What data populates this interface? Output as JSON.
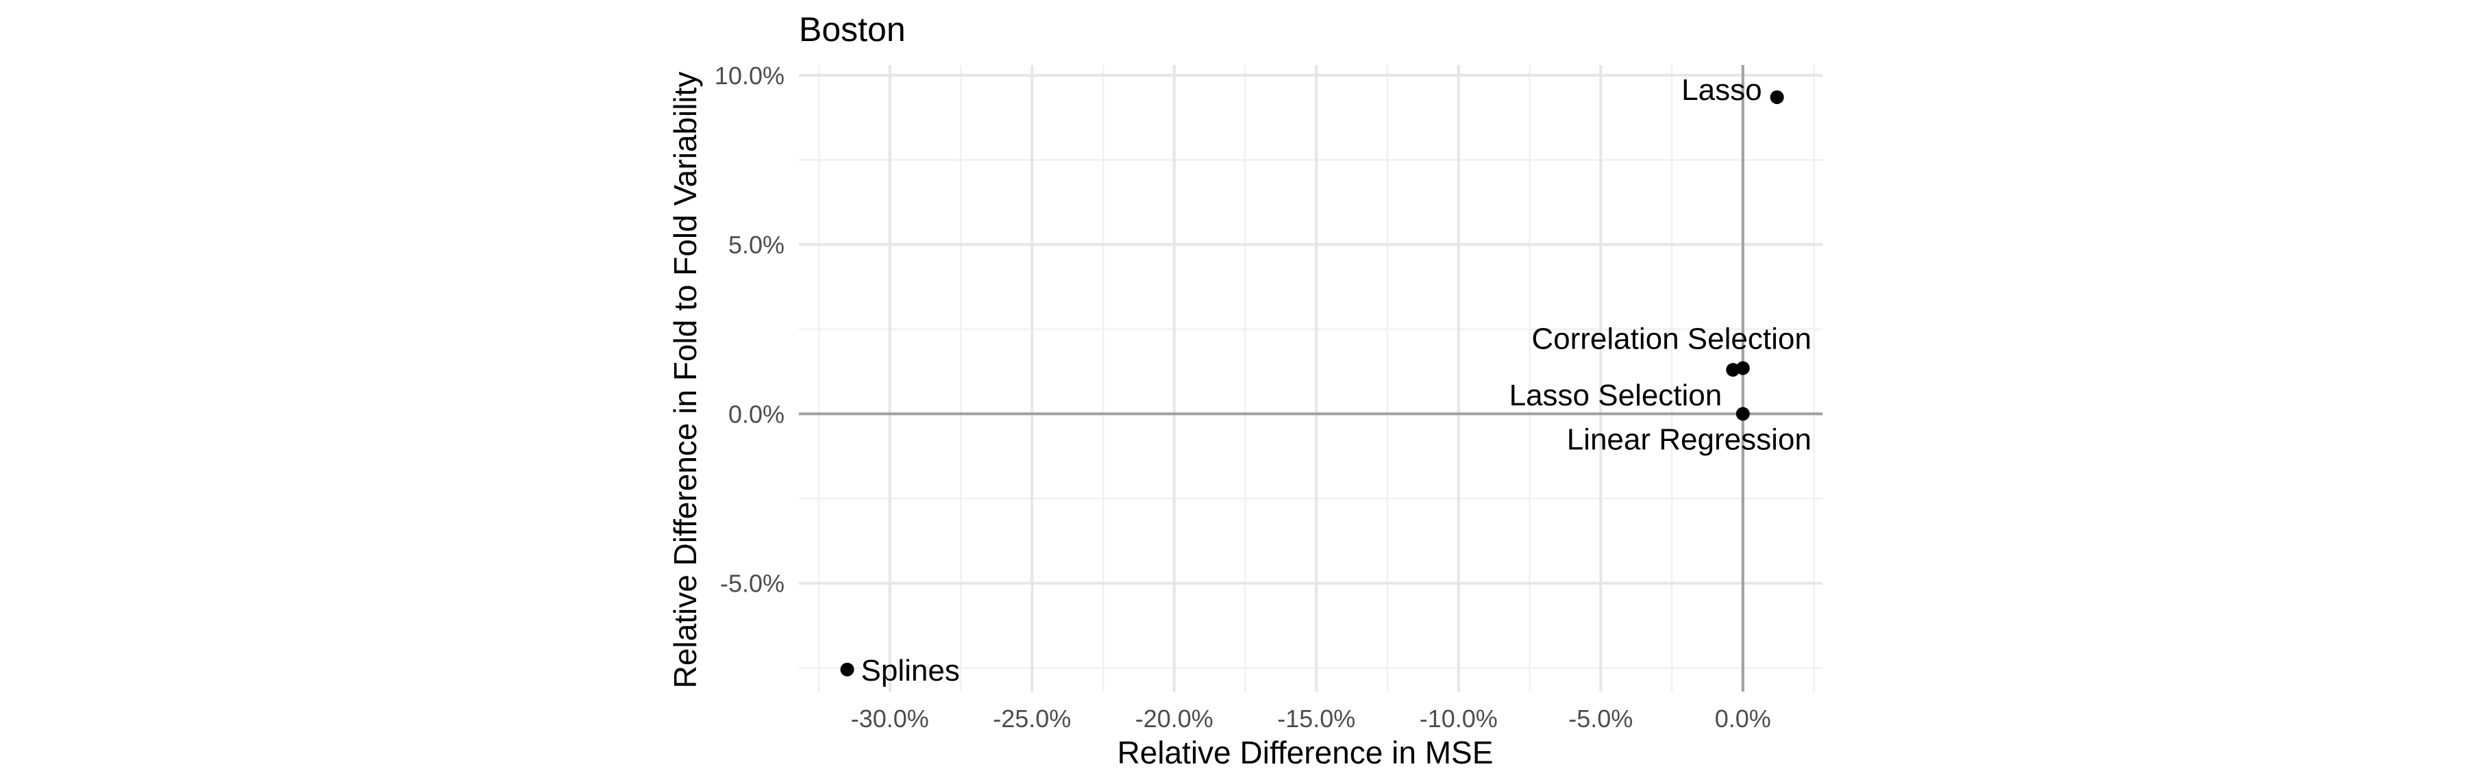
{
  "chart_data": {
    "type": "scatter",
    "title": "Boston",
    "xlabel": "Relative Difference in MSE",
    "ylabel": "Relative Difference in Fold to Fold Variability",
    "xlim": [
      -33.2,
      2.8
    ],
    "ylim": [
      -8.2,
      10.3
    ],
    "x_ticks": [
      -30,
      -25,
      -20,
      -15,
      -10,
      -5,
      0
    ],
    "x_tick_labels": [
      "-30.0%",
      "-25.0%",
      "-20.0%",
      "-15.0%",
      "-10.0%",
      "-5.0%",
      "0.0%"
    ],
    "y_ticks": [
      -5,
      0,
      5,
      10
    ],
    "y_tick_labels": [
      "-5.0%",
      "0.0%",
      "5.0%",
      "10.0%"
    ],
    "grid": true,
    "reference_lines": {
      "x": 0,
      "y": 0
    },
    "points": [
      {
        "label": "Lasso",
        "x": 1.2,
        "y": 9.35
      },
      {
        "label": "Correlation Selection",
        "x": 0.0,
        "y": 1.35
      },
      {
        "label": "Lasso Selection",
        "x": -0.35,
        "y": 1.3
      },
      {
        "label": "Linear Regression",
        "x": 0.0,
        "y": 0.0
      },
      {
        "label": "Splines",
        "x": -31.5,
        "y": -7.55
      }
    ],
    "point_color": "#000000"
  }
}
